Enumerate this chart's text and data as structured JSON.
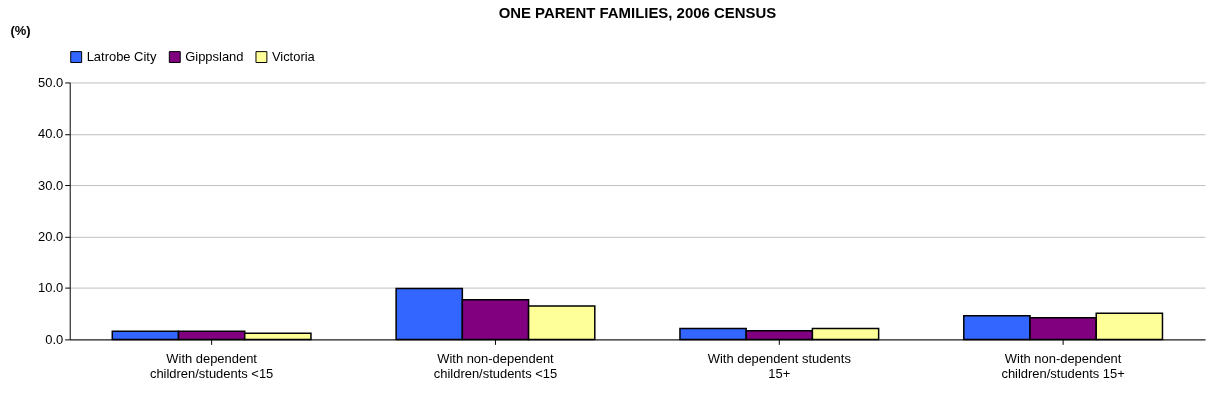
{
  "chart_data": {
    "type": "bar",
    "title": "ONE PARENT FAMILIES, 2006 CENSUS",
    "ylabel": "(%)",
    "categories": [
      "With dependent\nchildren/students <15",
      "With non-dependent\nchildren/students <15",
      "With dependent students\n15+",
      "With non-dependent\nchildren/students 15+"
    ],
    "series": [
      {
        "name": "Latrobe City",
        "color": "#3366ff",
        "values": [
          1.6,
          9.9,
          2.1,
          4.6
        ]
      },
      {
        "name": "Gippsland",
        "color": "#800080",
        "values": [
          1.6,
          7.7,
          1.7,
          4.2
        ]
      },
      {
        "name": "Victoria",
        "color": "#ffff99",
        "values": [
          1.2,
          6.5,
          2.1,
          5.1
        ]
      }
    ],
    "ylim": [
      0,
      50
    ],
    "yticks": [
      {
        "value": 0,
        "label": "0.0"
      },
      {
        "value": 10,
        "label": "10.0"
      },
      {
        "value": 20,
        "label": "20.0"
      },
      {
        "value": 30,
        "label": "30.0"
      },
      {
        "value": 40,
        "label": "40.0"
      },
      {
        "value": 50,
        "label": "50.0"
      }
    ],
    "grid": "y",
    "legend": "top"
  }
}
